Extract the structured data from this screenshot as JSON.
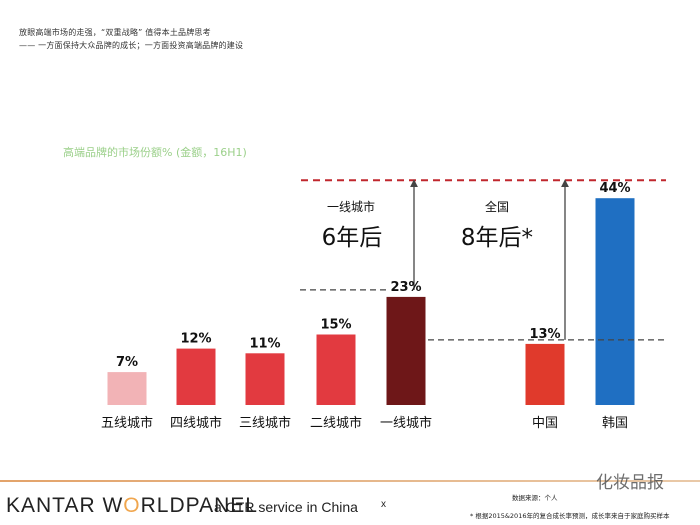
{
  "header": {
    "title": "放眼高端市场的走强，“双重战略” 值得本土品牌思考",
    "subtitle": "—— 一方面保持大众品牌的成长；一方面投资高端品牌的建设"
  },
  "chart_data": {
    "type": "bar",
    "title": "高端品牌的市场份额% (金额，16H1)",
    "categories": [
      "五线城市",
      "四线城市",
      "三线城市",
      "二线城市",
      "一线城市",
      "中国",
      "韩国"
    ],
    "values": [
      7,
      12,
      11,
      15,
      23,
      13,
      44
    ],
    "value_labels": [
      "7%",
      "12%",
      "11%",
      "15%",
      "23%",
      "13%",
      "44%"
    ],
    "colors": [
      "#f2b3b6",
      "#e23a40",
      "#e23a40",
      "#e23a40",
      "#6e1718",
      "#e03a2c",
      "#1f6fc2"
    ],
    "ylim": [
      0,
      46
    ],
    "annotations": [
      {
        "region": "一线城市",
        "years": "6年后"
      },
      {
        "region": "全国",
        "years": "8年后*"
      }
    ]
  },
  "footer": {
    "brand_left": "KANTAR W",
    "brand_o": "O",
    "brand_right": "RLDPANEL",
    "tagline": "a CTR service in China",
    "mark": "x",
    "source": "数据来源：个人",
    "note": "* 根据2015&2016年的复合成长率预测，成长率来自于家庭购买样本",
    "watermark": "化妆品报"
  },
  "colors": {
    "accent_green": "#9bd08a",
    "target_line": "#c0272d",
    "footer_line": "#e3a36a",
    "brand_orange": "#f0a64e"
  }
}
